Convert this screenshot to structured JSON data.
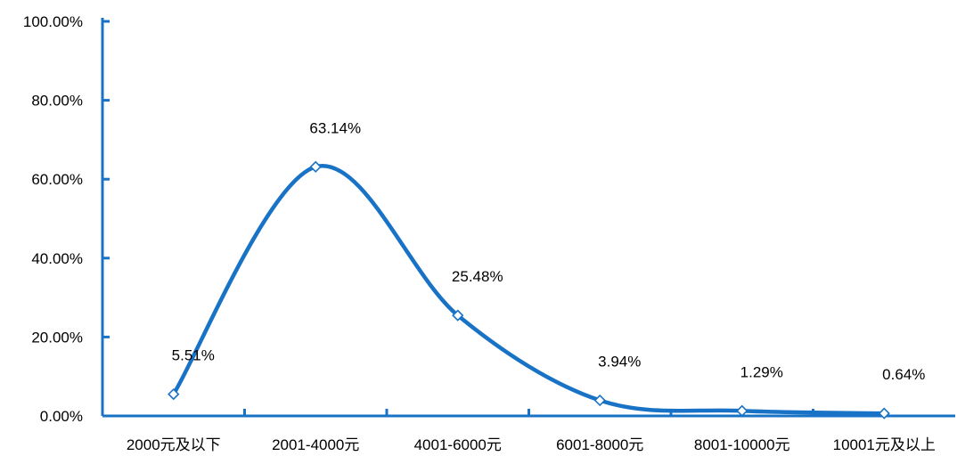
{
  "chart_data": {
    "type": "line",
    "smooth": true,
    "categories": [
      "2000元及以下",
      "2001-4000元",
      "4001-6000元",
      "6001-8000元",
      "8001-10000元",
      "10001元及以上"
    ],
    "values": [
      5.51,
      63.14,
      25.48,
      3.94,
      1.29,
      0.64
    ],
    "data_labels": [
      "5.51%",
      "63.14%",
      "25.48%",
      "3.94%",
      "1.29%",
      "0.64%"
    ],
    "ylim": [
      0,
      100
    ],
    "yticks": [
      0,
      20,
      40,
      60,
      80,
      100
    ],
    "ytick_labels": [
      "0.00%",
      "20.00%",
      "40.00%",
      "60.00%",
      "80.00%",
      "100.00%"
    ],
    "title": "",
    "xlabel": "",
    "ylabel": "",
    "grid": false,
    "legend": "none",
    "colors": {
      "line": "#1872C6",
      "axis": "#1872C6",
      "marker_fill": "#FFFFFF"
    }
  }
}
